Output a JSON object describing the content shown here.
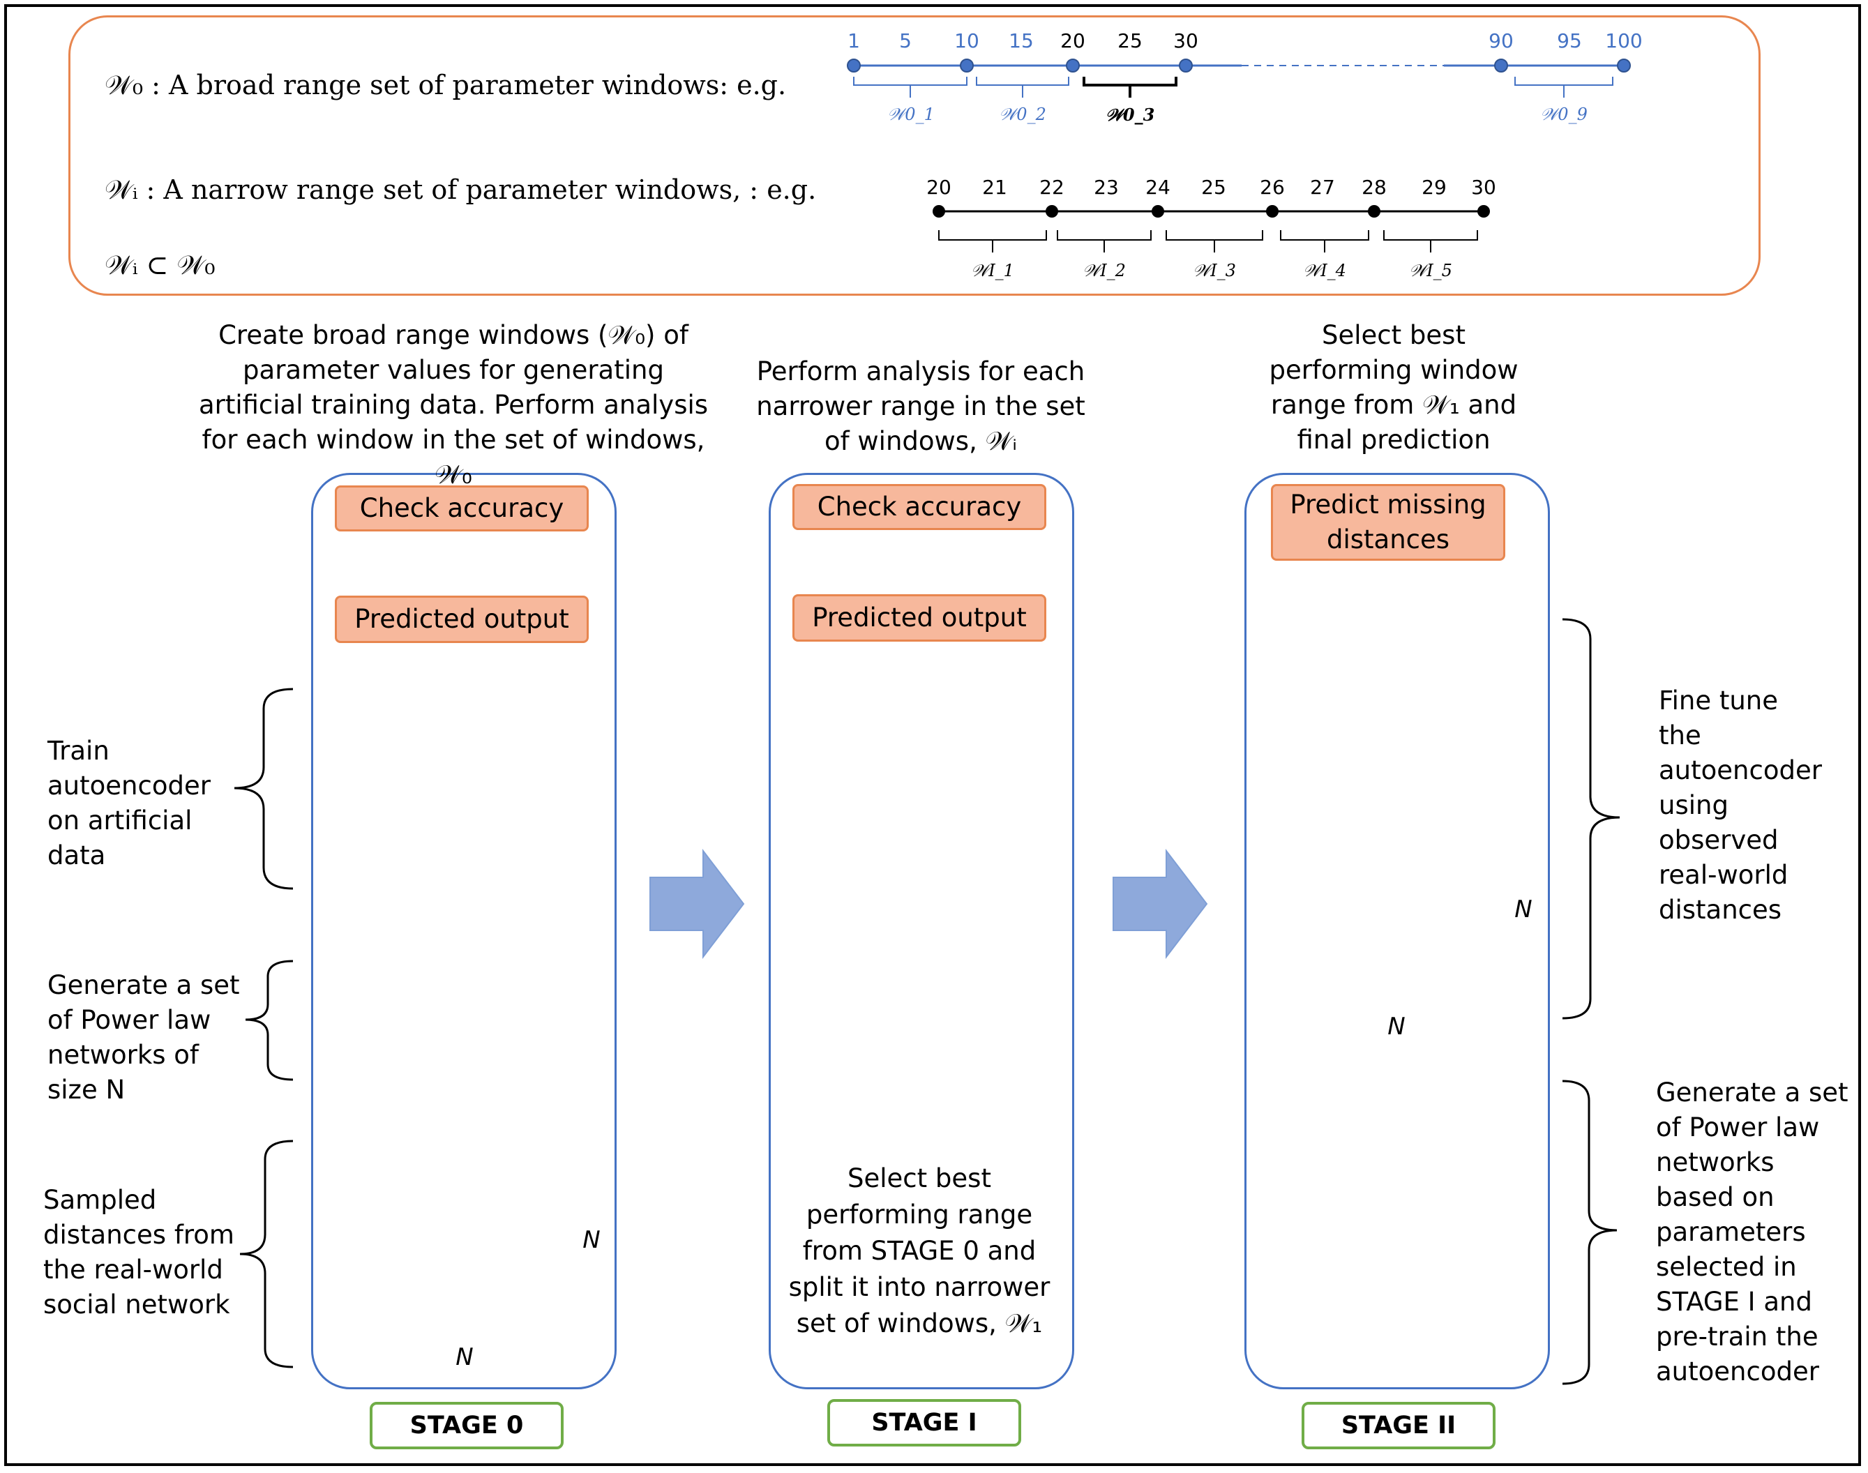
{
  "legend": {
    "w0_line": "𝒲₀ : A broad range set of parameter windows: e.g.",
    "wi_line": "𝒲ᵢ : A narrow range set of parameter windows, : e.g.",
    "subset_line": "𝒲ᵢ ⊂ 𝒲₀"
  },
  "broad_axis": {
    "ticks": [
      "1",
      "5",
      "10",
      "15",
      "20",
      "25",
      "30",
      "90",
      "95",
      "100"
    ],
    "windows": [
      "𝒲0_1",
      "𝒲0_2",
      "𝒲0_3",
      "𝒲0_9"
    ]
  },
  "narrow_axis": {
    "ticks": [
      "20",
      "21",
      "22",
      "23",
      "24",
      "25",
      "26",
      "27",
      "28",
      "29",
      "30"
    ],
    "windows": [
      "𝒲I_1",
      "𝒲I_2",
      "𝒲I_3",
      "𝒲I_4",
      "𝒲I_5"
    ]
  },
  "stage0": {
    "title": "Create broad range windows (𝒲₀) of parameter values for generating artificial training data. Perform analysis for each window in the set of windows, 𝒲₀",
    "check": "Check accuracy",
    "predicted": "Predicted output",
    "label": "STAGE 0",
    "side_train": "Train autoencoder on artificial data",
    "side_generate": "Generate a set of Power law networks of size N",
    "side_sampled": "Sampled distances from the real-world social network"
  },
  "stage1": {
    "title": "Perform analysis for each narrower range in the set of windows, 𝒲ᵢ",
    "check": "Check accuracy",
    "predicted": "Predicted output",
    "bottom": "Select best performing range from STAGE 0 and split it into narrower set of windows, 𝒲₁",
    "label": "STAGE I"
  },
  "stage2": {
    "title": "Select best performing window range from 𝒲₁ and final prediction",
    "predict": "Predict missing distances",
    "label": "STAGE II",
    "side_fine": "Fine tune the autoencoder using observed real-world distances",
    "side_generate": "Generate a set of Power law networks based on parameters selected in STAGE I and pre-train the autoencoder"
  },
  "matrix": {
    "rows": [
      [
        "?",
        "?",
        "?",
        "?"
      ],
      [
        "?",
        "✓",
        "?",
        "✓"
      ],
      [
        "?",
        "?",
        "?",
        "?"
      ],
      [
        "?",
        "✓",
        "?",
        "?"
      ]
    ],
    "dimension": "N"
  },
  "colors": {
    "blue": "#4472c4",
    "orange_fill": "#f7b89c",
    "orange_border": "#e8864f",
    "green": "#70ad47",
    "dark_cell": "#a6a6a6",
    "light_cell": "#e6e6e6",
    "arrow_fill": "#8ea9db"
  }
}
